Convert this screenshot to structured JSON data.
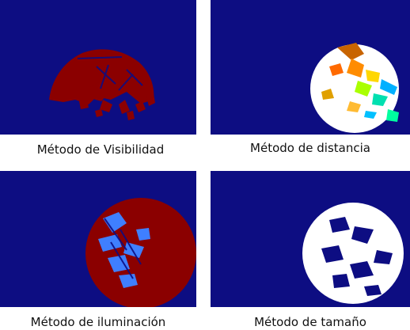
{
  "colors": {
    "background": "#0d0d82",
    "dark_red": "#8b0000",
    "white": "#ffffff",
    "blue_highlight": "#3f7fff"
  },
  "panels": [
    {
      "id": "visibilidad",
      "caption": "Método de Visibilidad"
    },
    {
      "id": "distancia",
      "caption": "Método de distancia"
    },
    {
      "id": "iluminacion",
      "caption": "Método de iluminación"
    },
    {
      "id": "tamano",
      "caption": "Método de tamaño"
    }
  ]
}
